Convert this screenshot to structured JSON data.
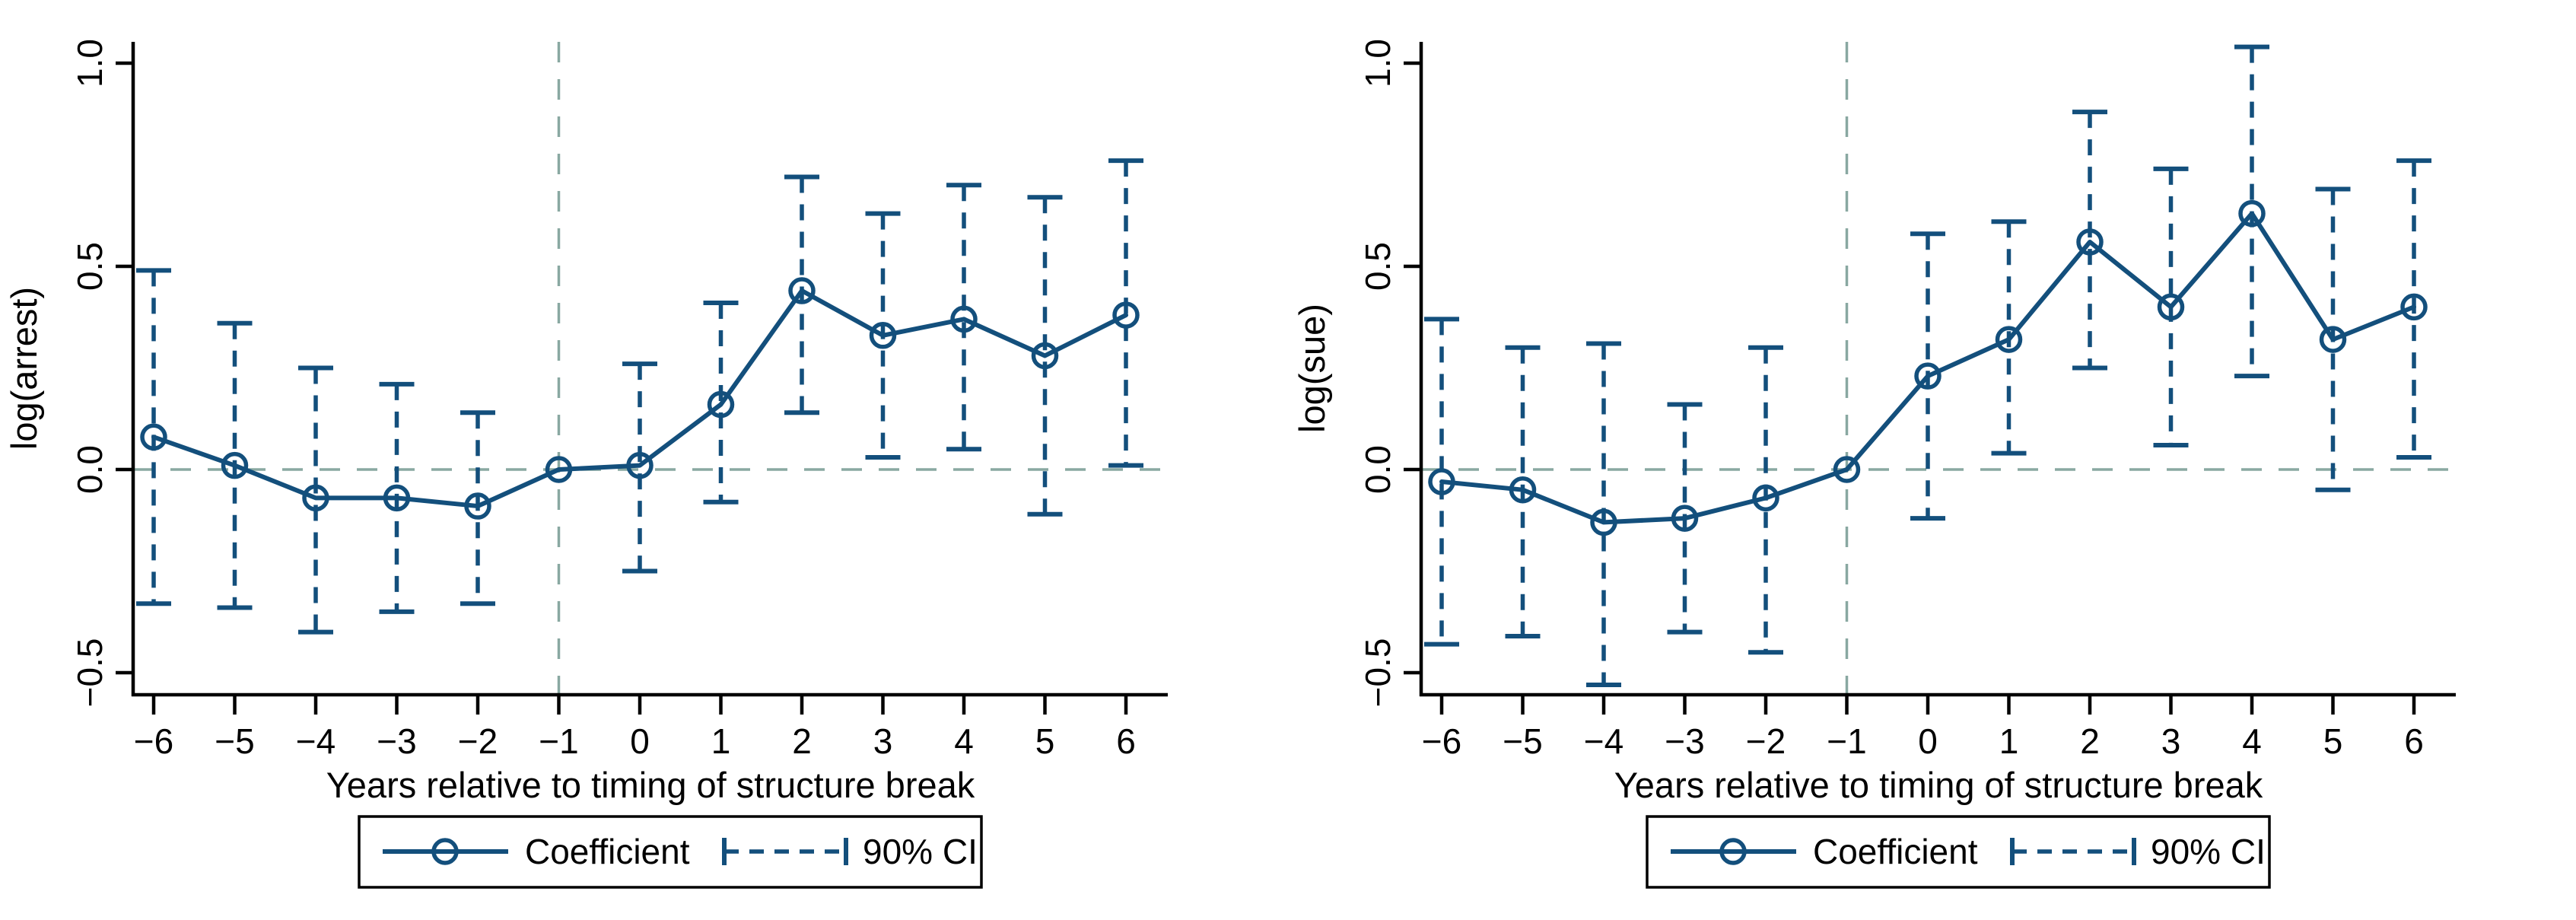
{
  "figure": {
    "background": "#ffffff",
    "series_color": "#134f7c",
    "reference_line_color": "#89a8a1",
    "axis_color": "#000000",
    "text_color": "#000000",
    "legend_border_color": "#000000"
  },
  "chart_data": [
    {
      "type": "line",
      "panel": "left",
      "title": "",
      "ylabel": "log(arrest)",
      "xlabel": "Years relative to timing of structure break",
      "x": [
        -6,
        -5,
        -4,
        -3,
        -2,
        -1,
        0,
        1,
        2,
        3,
        4,
        5,
        6
      ],
      "x_tick_labels": [
        "−6",
        "−5",
        "−4",
        "−3",
        "−2",
        "−1",
        "0",
        "1",
        "2",
        "3",
        "4",
        "5",
        "6"
      ],
      "y_ticks": [
        1.0,
        0.5,
        0.0,
        -0.5
      ],
      "y_tick_labels": [
        "1.0",
        "0.5",
        "0.0",
        "−0.5"
      ],
      "ylim": [
        -0.55,
        1.07
      ],
      "grid": false,
      "legend_position": "bottom",
      "legend": [
        "Coefficient",
        "90% CI"
      ],
      "reference_lines": {
        "vline_x": -1,
        "hline_y": 0
      },
      "series": [
        {
          "name": "Coefficient",
          "values": [
            0.08,
            0.01,
            -0.07,
            -0.07,
            -0.09,
            0.0,
            0.01,
            0.16,
            0.44,
            0.33,
            0.37,
            0.28,
            0.38
          ]
        },
        {
          "name": "90% CI lower",
          "values": [
            -0.33,
            -0.34,
            -0.4,
            -0.35,
            -0.33,
            null,
            -0.25,
            -0.08,
            0.14,
            0.03,
            0.05,
            -0.11,
            0.01
          ]
        },
        {
          "name": "90% CI upper",
          "values": [
            0.49,
            0.36,
            0.25,
            0.21,
            0.14,
            null,
            0.26,
            0.41,
            0.72,
            0.63,
            0.7,
            0.67,
            0.76
          ]
        }
      ]
    },
    {
      "type": "line",
      "panel": "right",
      "title": "",
      "ylabel": "log(sue)",
      "xlabel": "Years relative to timing of structure break",
      "x": [
        -6,
        -5,
        -4,
        -3,
        -2,
        -1,
        0,
        1,
        2,
        3,
        4,
        5,
        6
      ],
      "x_tick_labels": [
        "−6",
        "−5",
        "−4",
        "−3",
        "−2",
        "−1",
        "0",
        "1",
        "2",
        "3",
        "4",
        "5",
        "6"
      ],
      "y_ticks": [
        1.0,
        0.5,
        0.0,
        -0.5
      ],
      "y_tick_labels": [
        "1.0",
        "0.5",
        "0.0",
        "−0.5"
      ],
      "ylim": [
        -0.55,
        1.07
      ],
      "grid": false,
      "legend_position": "bottom",
      "legend": [
        "Coefficient",
        "90% CI"
      ],
      "reference_lines": {
        "vline_x": -1,
        "hline_y": 0
      },
      "series": [
        {
          "name": "Coefficient",
          "values": [
            -0.03,
            -0.05,
            -0.13,
            -0.12,
            -0.07,
            0.0,
            0.23,
            0.32,
            0.56,
            0.4,
            0.63,
            0.32,
            0.4
          ]
        },
        {
          "name": "90% CI lower",
          "values": [
            -0.43,
            -0.41,
            -0.53,
            -0.4,
            -0.45,
            null,
            -0.12,
            0.04,
            0.25,
            0.06,
            0.23,
            -0.05,
            0.03
          ]
        },
        {
          "name": "90% CI upper",
          "values": [
            0.37,
            0.3,
            0.31,
            0.16,
            0.3,
            null,
            0.58,
            0.61,
            0.88,
            0.74,
            1.04,
            0.69,
            0.76
          ]
        }
      ]
    }
  ]
}
